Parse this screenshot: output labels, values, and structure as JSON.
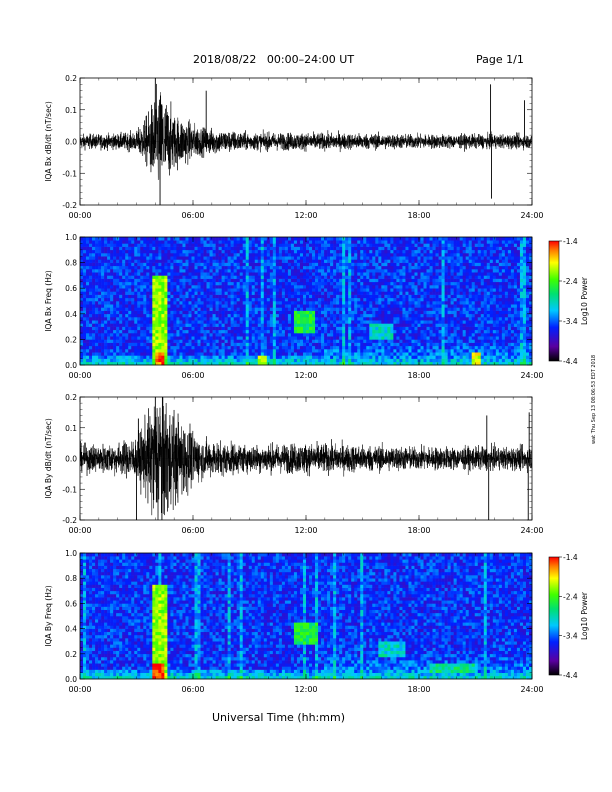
{
  "header": {
    "title": "2018/08/22   00:00–24:00 UT",
    "page": "Page 1/1"
  },
  "footer": {
    "xlabel": "Universal Time (hh:mm)",
    "stamp": "wat Thu Sep 13 08:06:53 EDT 2018"
  },
  "chart_data": [
    {
      "type": "line",
      "ylabel": "IQA Bx dB/dt (nT/sec)",
      "ylim": [
        -0.2,
        0.2
      ],
      "yticks": [
        "0.2",
        "0.1",
        "0.0",
        "-0.1",
        "-0.2"
      ],
      "xlim": [
        0,
        24
      ],
      "xticks": [
        "00:00",
        "06:00",
        "12:00",
        "18:00",
        "24:00"
      ],
      "activity": [
        {
          "t": 0,
          "a": 0.018
        },
        {
          "t": 2,
          "a": 0.02
        },
        {
          "t": 3,
          "a": 0.025
        },
        {
          "t": 3.6,
          "a": 0.07
        },
        {
          "t": 4.2,
          "a": 0.14
        },
        {
          "t": 5.0,
          "a": 0.07
        },
        {
          "t": 6.5,
          "a": 0.035
        },
        {
          "t": 9,
          "a": 0.022
        },
        {
          "t": 12,
          "a": 0.022
        },
        {
          "t": 18,
          "a": 0.018
        },
        {
          "t": 24,
          "a": 0.018
        }
      ],
      "spikes": [
        {
          "t": 4.0,
          "v": 0.2
        },
        {
          "t": 4.25,
          "v": -0.2
        },
        {
          "t": 6.7,
          "v": 0.16
        },
        {
          "t": 21.8,
          "v": 0.18
        },
        {
          "t": 21.85,
          "v": -0.18
        },
        {
          "t": 23.6,
          "v": 0.13
        }
      ]
    },
    {
      "type": "heatmap",
      "ylabel": "IQA Bx Freq (Hz)",
      "ylim": [
        0.0,
        1.0
      ],
      "yticks": [
        "1.0",
        "0.8",
        "0.6",
        "0.4",
        "0.2",
        "0.0"
      ],
      "xlim": [
        0,
        24
      ],
      "xticks": [
        "00:00",
        "06:00",
        "12:00",
        "18:00",
        "24:00"
      ],
      "colorbar": {
        "label": "Log10 Power",
        "range": [
          -4.4,
          -1.4
        ],
        "ticks": [
          "-1.4",
          "-2.4",
          "-3.4",
          "-4.4"
        ]
      },
      "features": [
        {
          "t0": 11.3,
          "t1": 12.5,
          "f0": 0.25,
          "f1": 0.42,
          "p": -2.6
        },
        {
          "t0": 15.4,
          "t1": 16.6,
          "f0": 0.2,
          "f1": 0.32,
          "p": -3.0
        },
        {
          "t0": 3.8,
          "t1": 4.6,
          "f0": 0.0,
          "f1": 0.7,
          "p": -2.2
        },
        {
          "t0": 4.0,
          "t1": 4.4,
          "f0": 0.0,
          "f1": 0.1,
          "p": -1.6
        },
        {
          "t0": 9.5,
          "t1": 9.9,
          "f0": 0.0,
          "f1": 0.08,
          "p": -2.0
        },
        {
          "t0": 20.8,
          "t1": 21.3,
          "f0": 0.0,
          "f1": 0.1,
          "p": -2.0
        }
      ]
    },
    {
      "type": "line",
      "ylabel": "IQA By dB/dt (nT/sec)",
      "ylim": [
        -0.2,
        0.2
      ],
      "yticks": [
        "0.2",
        "0.1",
        "0.0",
        "-0.1",
        "-0.2"
      ],
      "xlim": [
        0,
        24
      ],
      "xticks": [
        "00:00",
        "06:00",
        "12:00",
        "18:00",
        "24:00"
      ],
      "activity": [
        {
          "t": 0,
          "a": 0.035
        },
        {
          "t": 2,
          "a": 0.04
        },
        {
          "t": 3,
          "a": 0.055
        },
        {
          "t": 3.5,
          "a": 0.1
        },
        {
          "t": 4.2,
          "a": 0.2
        },
        {
          "t": 5.0,
          "a": 0.12
        },
        {
          "t": 6.5,
          "a": 0.05
        },
        {
          "t": 9,
          "a": 0.035
        },
        {
          "t": 12,
          "a": 0.04
        },
        {
          "t": 18,
          "a": 0.03
        },
        {
          "t": 24,
          "a": 0.03
        }
      ],
      "spikes": [
        {
          "t": 3.0,
          "v": -0.2
        },
        {
          "t": 3.1,
          "v": 0.13
        },
        {
          "t": 4.0,
          "v": 0.2
        },
        {
          "t": 4.35,
          "v": -0.2
        },
        {
          "t": 21.6,
          "v": 0.14
        },
        {
          "t": 21.7,
          "v": -0.2
        },
        {
          "t": 23.8,
          "v": -0.2
        },
        {
          "t": 23.85,
          "v": 0.15
        }
      ]
    },
    {
      "type": "heatmap",
      "ylabel": "IQA By Freq (Hz)",
      "ylim": [
        0.0,
        1.0
      ],
      "yticks": [
        "1.0",
        "0.8",
        "0.6",
        "0.4",
        "0.2",
        "0.0"
      ],
      "xlim": [
        0,
        24
      ],
      "xticks": [
        "00:00",
        "06:00",
        "12:00",
        "18:00",
        "24:00"
      ],
      "colorbar": {
        "label": "Log10 Power",
        "range": [
          -4.4,
          -1.4
        ],
        "ticks": [
          "-1.4",
          "-2.4",
          "-3.4",
          "-4.4"
        ]
      },
      "features": [
        {
          "t0": 11.4,
          "t1": 12.6,
          "f0": 0.28,
          "f1": 0.46,
          "p": -2.6
        },
        {
          "t0": 15.8,
          "t1": 17.2,
          "f0": 0.18,
          "f1": 0.3,
          "p": -3.0
        },
        {
          "t0": 3.8,
          "t1": 4.7,
          "f0": 0.0,
          "f1": 0.75,
          "p": -2.2
        },
        {
          "t0": 3.9,
          "t1": 4.4,
          "f0": 0.0,
          "f1": 0.12,
          "p": -1.5
        },
        {
          "t0": 18.5,
          "t1": 21.0,
          "f0": 0.05,
          "f1": 0.12,
          "p": -2.8
        }
      ]
    }
  ]
}
